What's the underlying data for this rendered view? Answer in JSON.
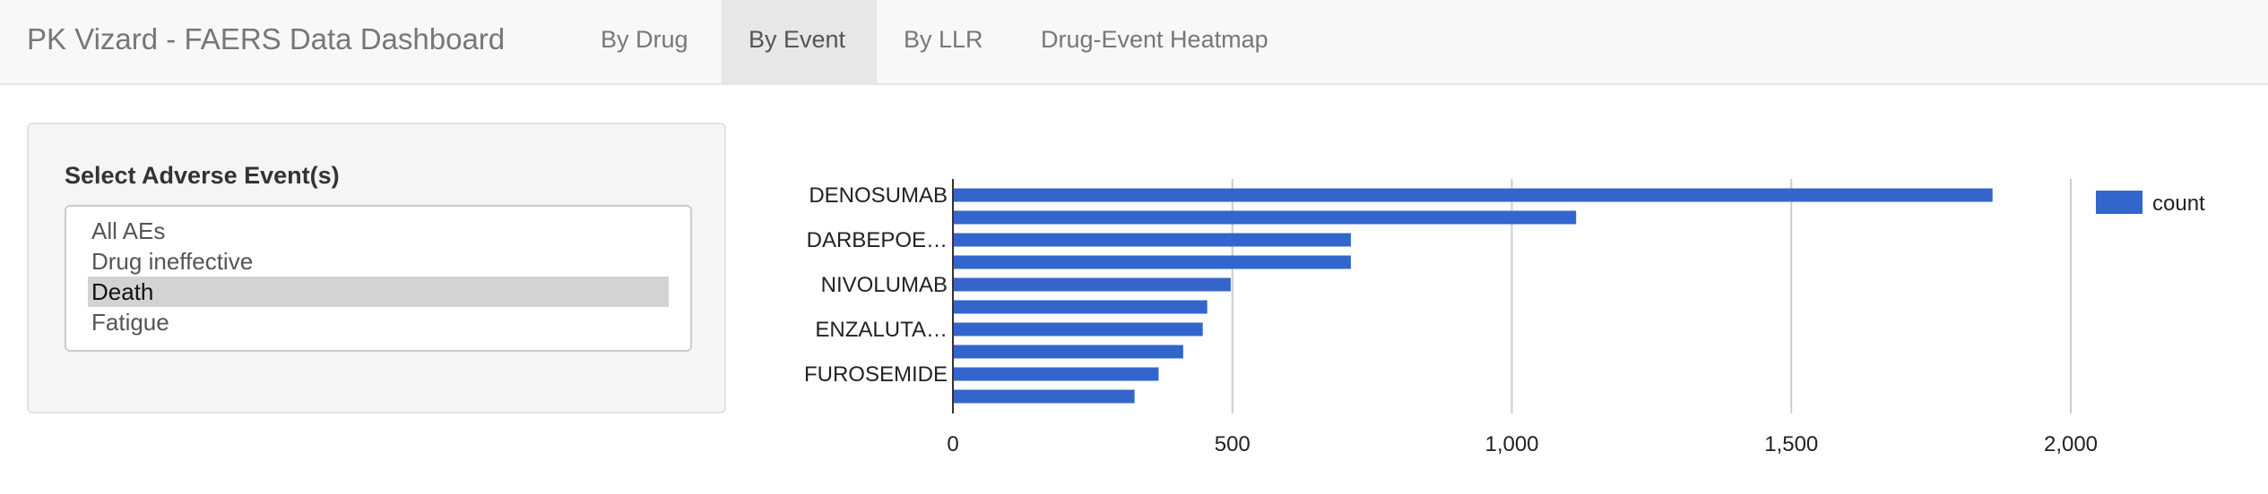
{
  "navbar": {
    "brand": "PK Vizard - FAERS Data Dashboard",
    "tabs": [
      {
        "label": "By Drug",
        "active": false
      },
      {
        "label": "By Event",
        "active": true
      },
      {
        "label": "By LLR",
        "active": false
      },
      {
        "label": "Drug-Event Heatmap",
        "active": false
      }
    ]
  },
  "sidebar": {
    "label": "Select Adverse Event(s)",
    "options": [
      "All AEs",
      "Drug ineffective",
      "Death",
      "Fatigue"
    ],
    "selected": "Death"
  },
  "chart_data": {
    "type": "bar",
    "orientation": "horizontal",
    "categories": [
      "DENOSUMAB",
      "",
      "DARBEPOE…",
      "",
      "NIVOLUMAB",
      "",
      "ENZALUTA…",
      "",
      "FUROSEMIDE",
      ""
    ],
    "series": [
      {
        "name": "count",
        "values": [
          1860,
          1115,
          712,
          712,
          497,
          455,
          447,
          412,
          368,
          325
        ],
        "color": "#3366cc"
      }
    ],
    "xlim": [
      0,
      2000
    ],
    "xticks": [
      0,
      500,
      1000,
      1500,
      2000
    ],
    "xtick_labels": [
      "0",
      "500",
      "1,000",
      "1,500",
      "2,000"
    ],
    "grid": true,
    "legend_position": "right"
  }
}
